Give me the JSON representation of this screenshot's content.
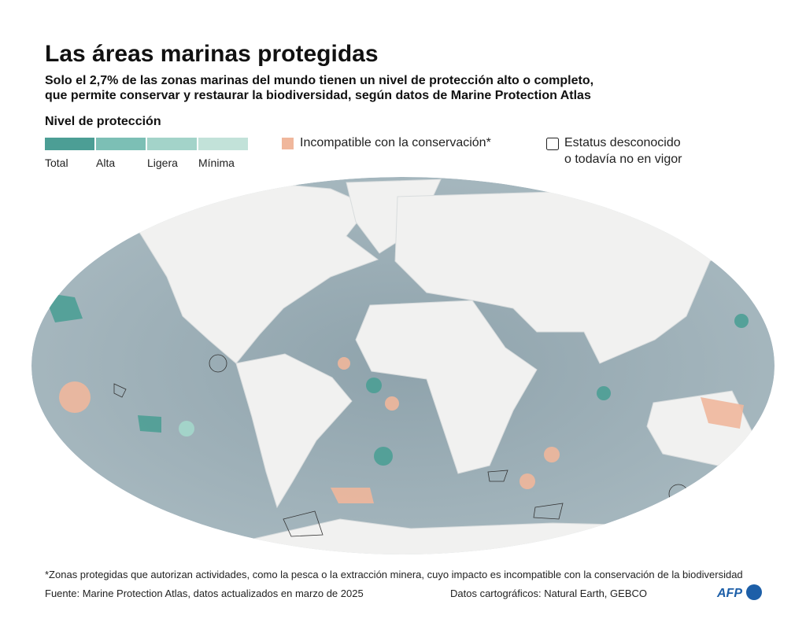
{
  "header": {
    "title": "Las áreas marinas protegidas",
    "subtitle": [
      "Solo el 2,7% de las zonas marinas del mundo tienen un nivel de protección alto o completo,",
      "que permite conservar y restaurar la biodiversidad, según datos de Marine Protection Atlas"
    ]
  },
  "legend": {
    "title": "Nivel de protección",
    "levels": [
      {
        "label": "Total",
        "color": "#4c9e95"
      },
      {
        "label": "Alta",
        "color": "#7cbfb5"
      },
      {
        "label": "Ligera",
        "color": "#a3d3c9"
      },
      {
        "label": "Mínima",
        "color": "#c2e2d9"
      }
    ],
    "incompatible": {
      "label": "Incompatible con la conservación*",
      "color": "#f0b79c"
    },
    "unknown": [
      "Estatus desconocido",
      "o todavía no en vigor"
    ]
  },
  "footer": {
    "note": "*Zonas protegidas que autorizan actividades, como la pesca o la extracción minera, cuyo impacto es incompatible con la conservación de la biodiversidad",
    "source": "Fuente: Marine Protection Atlas, datos actualizados en marzo de 2025",
    "map_data": "Datos cartográficos: Natural Earth, GEBCO",
    "logo": "AFP"
  }
}
